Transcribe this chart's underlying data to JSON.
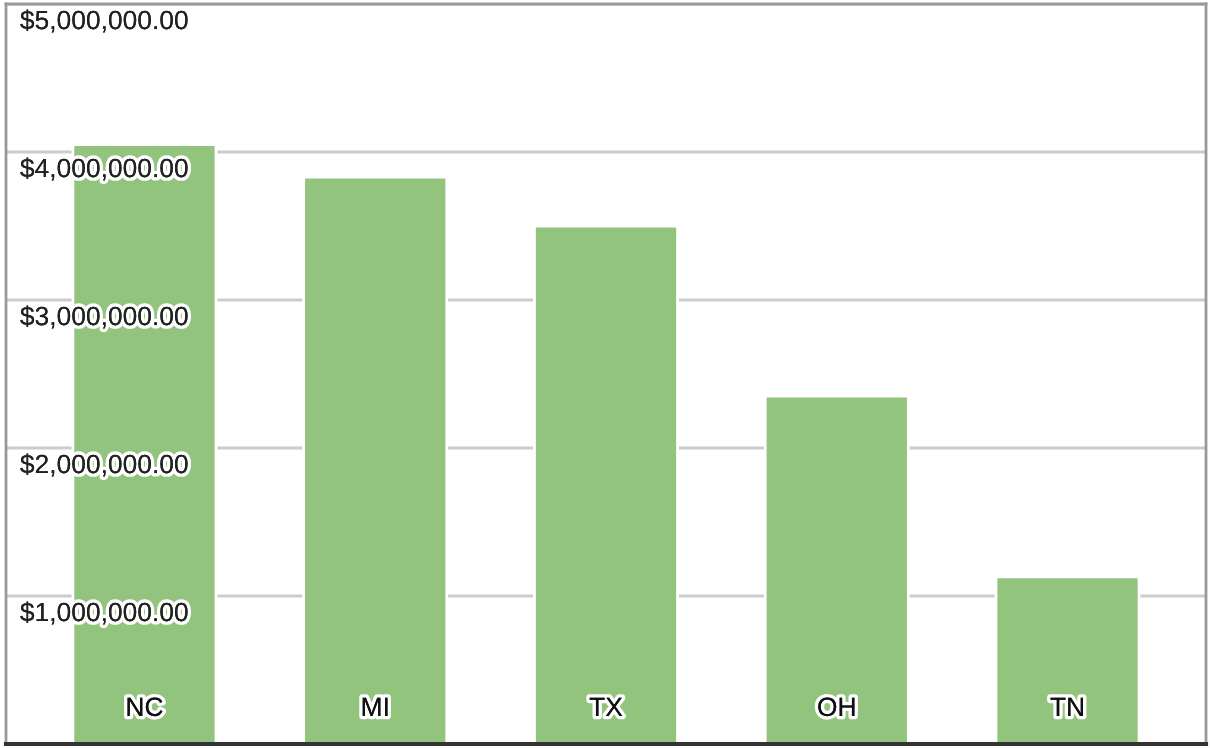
{
  "chart_data": {
    "type": "bar",
    "categories": [
      "NC",
      "MI",
      "TX",
      "OH",
      "TN"
    ],
    "values": [
      4050000,
      3830000,
      3500000,
      2350000,
      1130000
    ],
    "color": "#93c47d",
    "ylim": [
      0,
      5000000
    ],
    "yticks": [
      {
        "value": 1000000,
        "label": "$1,000,000.00"
      },
      {
        "value": 2000000,
        "label": "$2,000,000.00"
      },
      {
        "value": 3000000,
        "label": "$3,000,000.00"
      },
      {
        "value": 4000000,
        "label": "$4,000,000.00"
      },
      {
        "value": 5000000,
        "label": "$5,000,000.00"
      }
    ],
    "grid": "y"
  }
}
